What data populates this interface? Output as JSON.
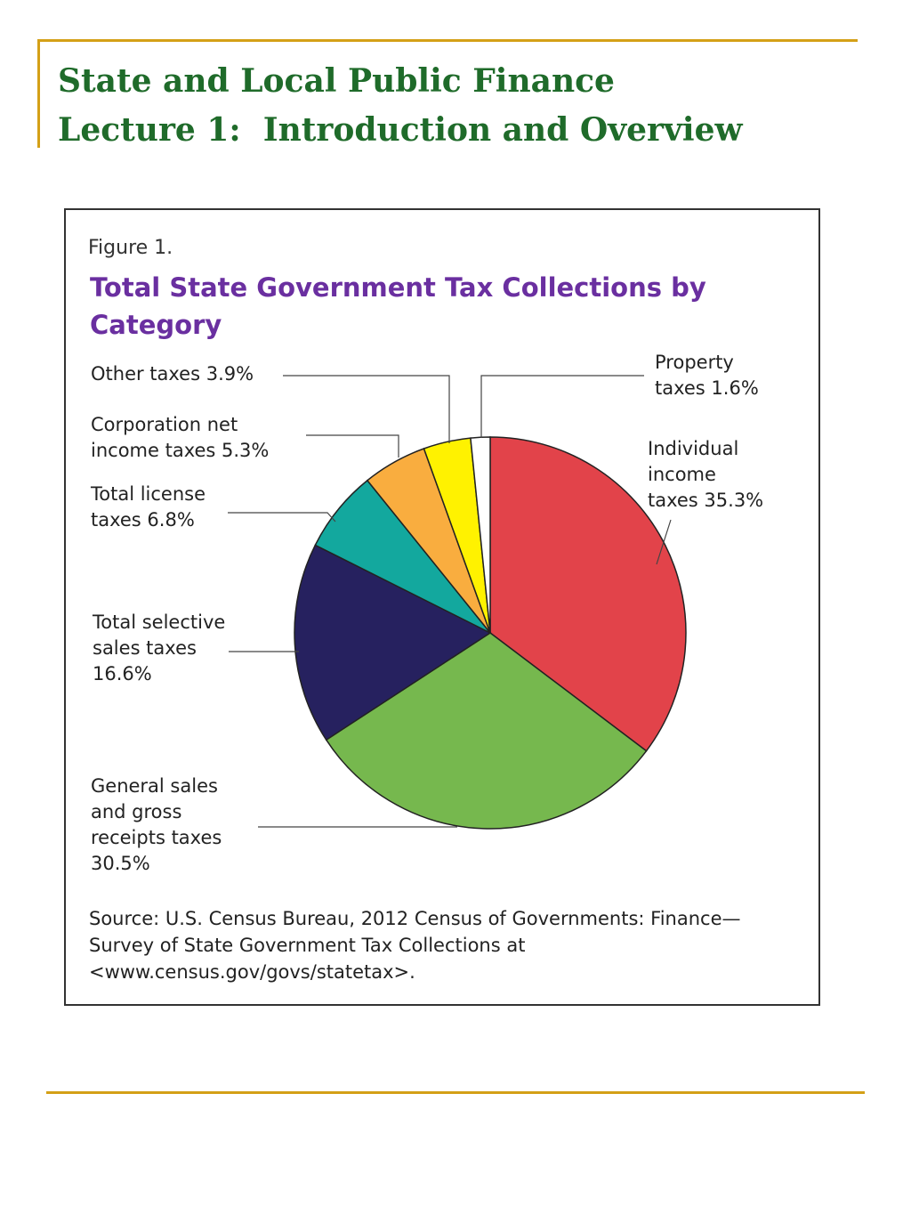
{
  "slide": {
    "title_line1": "State and Local Public Finance",
    "title_line2": "Lecture 1:  Introduction and Overview",
    "accent_color": "#d4a017",
    "title_color": "#1f6b2a"
  },
  "figure": {
    "label": "Figure 1.",
    "title": "Total State Government Tax Collections by Category",
    "source": "Source: U.S. Census Bureau, 2012 Census of Governments: Finance—Survey of State Government Tax Collections at <www.census.gov/govs/statetax>."
  },
  "chart_data": {
    "type": "pie",
    "title": "Total State Government Tax Collections by Category",
    "unit": "%",
    "slices": [
      {
        "label_lines": [
          "Individual",
          "income",
          "taxes 35.3%"
        ],
        "value": 35.3,
        "color": "#e2434a"
      },
      {
        "label_lines": [
          "General sales",
          "and gross",
          "receipts taxes",
          "30.5%"
        ],
        "value": 30.5,
        "color": "#76b84e"
      },
      {
        "label_lines": [
          "Total selective",
          "sales taxes",
          "16.6%"
        ],
        "value": 16.6,
        "color": "#26215f"
      },
      {
        "label_lines": [
          "Total license",
          "taxes 6.8%"
        ],
        "value": 6.8,
        "color": "#13a89e"
      },
      {
        "label_lines": [
          "Corporation net",
          "income taxes 5.3%"
        ],
        "value": 5.3,
        "color": "#f9ad3f"
      },
      {
        "label_lines": [
          "Other taxes 3.9%"
        ],
        "value": 3.9,
        "color": "#fff200"
      },
      {
        "label_lines": [
          "Property",
          "taxes 1.6%"
        ],
        "value": 1.6,
        "color": "#ffffff"
      }
    ]
  }
}
